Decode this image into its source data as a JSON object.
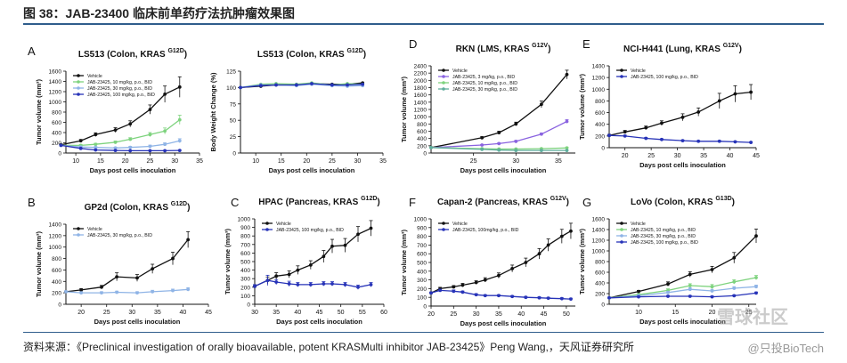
{
  "header": {
    "title": "图 38：JAB-23400 临床前单药疗法抗肿瘤效果图"
  },
  "footer": {
    "source": "资料来源：《Preclinical investigation of orally bioavailable, potent KRASMulti inhibitor JAB-23425》Peng Wang,，天风证券研究所",
    "watermark": "@只投BioTech",
    "watermark2": "雪球社区"
  },
  "colors": {
    "black": "#111111",
    "green": "#7ed37e",
    "lightblue": "#8fb4e6",
    "navy": "#2733b8",
    "purple": "#8a63e0",
    "teal": "#5fae9c",
    "rule": "#2f5d8c"
  },
  "chart_data": [
    {
      "panel": "A",
      "type": "line",
      "title": "LS513 (Colon, KRAS",
      "title_sup": "G12D",
      "ylabel": "Tumor volume (mm³)",
      "xlabel": "Days post cells inoculation",
      "xlim": [
        8,
        35
      ],
      "ylim": [
        0,
        1600
      ],
      "xticks": [
        10,
        15,
        20,
        25,
        30,
        35
      ],
      "yticks": [
        0,
        200,
        400,
        600,
        800,
        1000,
        1200,
        1400,
        1600
      ],
      "series": [
        {
          "name": "Vehicle",
          "color": "black",
          "x": [
            7,
            11,
            14,
            18,
            21,
            25,
            28,
            31
          ],
          "y": [
            160,
            240,
            360,
            450,
            570,
            850,
            1150,
            1290
          ],
          "err": [
            15,
            25,
            35,
            45,
            60,
            90,
            160,
            200
          ]
        },
        {
          "name": "JAB-23425, 10 mg/kg, p.o., BID",
          "color": "green",
          "x": [
            7,
            11,
            14,
            18,
            21,
            25,
            28,
            31
          ],
          "y": [
            150,
            150,
            170,
            210,
            270,
            360,
            430,
            650
          ],
          "err": [
            10,
            15,
            20,
            25,
            30,
            40,
            60,
            90
          ]
        },
        {
          "name": "JAB-23425, 30 mg/kg, p.o., BID",
          "color": "lightblue",
          "x": [
            7,
            11,
            14,
            18,
            21,
            25,
            28,
            31
          ],
          "y": [
            150,
            120,
            110,
            100,
            110,
            130,
            170,
            240
          ],
          "err": [
            10,
            15,
            15,
            15,
            20,
            25,
            30,
            40
          ]
        },
        {
          "name": "JAB-23425, 100 mg/kg, p.o., BID",
          "color": "navy",
          "x": [
            7,
            11,
            14,
            18,
            21,
            25,
            28,
            31
          ],
          "y": [
            150,
            90,
            60,
            50,
            45,
            45,
            45,
            50
          ],
          "err": [
            10,
            10,
            8,
            8,
            8,
            8,
            8,
            8
          ]
        }
      ]
    },
    {
      "panel": "A2",
      "type": "line",
      "title": "LS513 (Colon, KRAS",
      "title_sup": "G12D",
      "ylabel": "Body Weight Change (%)",
      "xlabel": "Days post cells inoculation",
      "xlim": [
        7,
        35
      ],
      "ylim": [
        0,
        125
      ],
      "xticks": [
        10,
        15,
        20,
        25,
        30,
        35
      ],
      "yticks": [
        0,
        25,
        50,
        75,
        100,
        125
      ],
      "series": [
        {
          "name": "",
          "color": "black",
          "x": [
            7,
            11,
            14,
            18,
            21,
            25,
            28,
            31
          ],
          "y": [
            100,
            102,
            104,
            104,
            106,
            105,
            105,
            107
          ]
        },
        {
          "name": "",
          "color": "green",
          "x": [
            7,
            11,
            14,
            18,
            21,
            25,
            28,
            31
          ],
          "y": [
            100,
            105,
            106,
            105,
            107,
            104,
            106,
            105
          ]
        },
        {
          "name": "",
          "color": "lightblue",
          "x": [
            7,
            11,
            14,
            18,
            21,
            25,
            28,
            31
          ],
          "y": [
            100,
            104,
            104,
            103,
            105,
            103,
            102,
            103
          ]
        },
        {
          "name": "",
          "color": "navy",
          "x": [
            7,
            11,
            14,
            18,
            21,
            25,
            28,
            31
          ],
          "y": [
            100,
            103,
            104,
            104,
            106,
            104,
            104,
            105
          ]
        }
      ]
    },
    {
      "panel": "D",
      "type": "line",
      "title": "RKN (LMS, KRAS",
      "title_sup": "G12V",
      "ylabel": "Tumor volume (mm³)",
      "xlabel": "Days post cells inoculation",
      "xlim": [
        20,
        37
      ],
      "ylim": [
        0,
        2400
      ],
      "xticks": [
        25,
        30,
        35
      ],
      "yticks": [
        0,
        200,
        400,
        600,
        800,
        1000,
        1200,
        1400,
        1600,
        1800,
        2000,
        2200,
        2400
      ],
      "series": [
        {
          "name": "Vehicle",
          "color": "black",
          "x": [
            20,
            26,
            28,
            30,
            33,
            36
          ],
          "y": [
            150,
            420,
            560,
            800,
            1340,
            2160
          ],
          "err": [
            15,
            30,
            40,
            50,
            90,
            120
          ]
        },
        {
          "name": "JAB-23425, 3 mg/kg, p.o., BID",
          "color": "purple",
          "x": [
            20,
            26,
            28,
            30,
            33,
            36
          ],
          "y": [
            150,
            220,
            260,
            320,
            520,
            870
          ],
          "err": [
            10,
            15,
            20,
            25,
            30,
            50
          ]
        },
        {
          "name": "JAB-23425, 10 mg/kg, p.o., BID",
          "color": "green",
          "x": [
            20,
            26,
            28,
            30,
            33,
            36
          ],
          "y": [
            150,
            120,
            110,
            110,
            120,
            140
          ],
          "err": [
            10,
            10,
            10,
            10,
            10,
            15
          ]
        },
        {
          "name": "JAB-23425, 30 mg/kg, p.o., BID",
          "color": "teal",
          "x": [
            20,
            26,
            28,
            30,
            33,
            36
          ],
          "y": [
            150,
            100,
            80,
            70,
            70,
            70
          ],
          "err": [
            10,
            10,
            8,
            8,
            8,
            8
          ]
        }
      ]
    },
    {
      "panel": "E",
      "type": "line",
      "title": "NCI-H441 (Lung, KRAS",
      "title_sup": "G12V",
      "ylabel": "Tumor volume (mm³)",
      "xlabel": "Days post cells inoculation",
      "xlim": [
        17,
        45
      ],
      "ylim": [
        0,
        1400
      ],
      "xticks": [
        20,
        25,
        30,
        35,
        40,
        45
      ],
      "yticks": [
        0,
        200,
        400,
        600,
        800,
        1000,
        1200,
        1400
      ],
      "series": [
        {
          "name": "Vehicle",
          "color": "black",
          "x": [
            17,
            20,
            24,
            27,
            31,
            34,
            38,
            41,
            44
          ],
          "y": [
            210,
            270,
            340,
            420,
            520,
            610,
            800,
            920,
            950
          ],
          "err": [
            20,
            25,
            30,
            40,
            60,
            70,
            130,
            140,
            130
          ]
        },
        {
          "name": "JAB-23425, 100 mg/kg, p.o., BID",
          "color": "navy",
          "x": [
            17,
            20,
            24,
            27,
            31,
            34,
            38,
            41,
            44
          ],
          "y": [
            210,
            200,
            160,
            140,
            120,
            110,
            110,
            100,
            90
          ],
          "err": [
            15,
            15,
            15,
            12,
            12,
            10,
            10,
            10,
            10
          ]
        }
      ]
    },
    {
      "panel": "B",
      "type": "line",
      "title": "GP2d (Colon, KRAS",
      "title_sup": "G12D",
      "ylabel": "Tumor volume (mm³)",
      "xlabel": "Days post cells inoculation",
      "xlim": [
        17,
        45
      ],
      "ylim": [
        0,
        1400
      ],
      "xticks": [
        20,
        25,
        30,
        35,
        40,
        45
      ],
      "yticks": [
        0,
        200,
        400,
        600,
        800,
        1000,
        1200,
        1400
      ],
      "series": [
        {
          "name": "Vehicle",
          "color": "black",
          "x": [
            17,
            20,
            24,
            27,
            31,
            34,
            38,
            41
          ],
          "y": [
            220,
            250,
            300,
            480,
            460,
            620,
            800,
            1130
          ],
          "err": [
            15,
            25,
            30,
            70,
            60,
            80,
            110,
            140
          ]
        },
        {
          "name": "JAB-23425, 30 mg/kg, p.o., BID",
          "color": "lightblue",
          "x": [
            17,
            20,
            24,
            27,
            31,
            34,
            38,
            41
          ],
          "y": [
            220,
            200,
            200,
            210,
            200,
            220,
            240,
            260
          ],
          "err": [
            15,
            20,
            20,
            20,
            20,
            25,
            25,
            30
          ]
        }
      ]
    },
    {
      "panel": "C",
      "type": "line",
      "title": "HPAC (Pancreas, KRAS",
      "title_sup": "G12D",
      "ylabel": "Tumor volume (mm³)",
      "xlabel": "Days post cells inoculation",
      "xlim": [
        30,
        60
      ],
      "ylim": [
        0,
        1000
      ],
      "xticks": [
        30,
        35,
        40,
        45,
        50,
        55,
        60
      ],
      "yticks": [
        0,
        100,
        200,
        300,
        400,
        500,
        600,
        700,
        800,
        900,
        1000
      ],
      "series": [
        {
          "name": "Vehicle",
          "color": "black",
          "x": [
            30,
            33,
            35,
            38,
            40,
            43,
            46,
            48,
            51,
            54,
            57
          ],
          "y": [
            210,
            280,
            330,
            350,
            400,
            460,
            560,
            680,
            690,
            820,
            890
          ],
          "err": [
            20,
            40,
            40,
            40,
            50,
            50,
            70,
            80,
            80,
            90,
            90
          ]
        },
        {
          "name": "JAB-23425, 100 mg/kg, p.o., BID",
          "color": "navy",
          "x": [
            30,
            33,
            35,
            38,
            40,
            43,
            46,
            48,
            51,
            54,
            57
          ],
          "y": [
            210,
            280,
            260,
            240,
            230,
            230,
            240,
            240,
            230,
            200,
            230
          ],
          "err": [
            20,
            60,
            30,
            30,
            25,
            25,
            25,
            25,
            25,
            25,
            25
          ]
        }
      ]
    },
    {
      "panel": "F",
      "type": "line",
      "title": "Capan-2 (Pancreas, KRAS",
      "title_sup": "G12V",
      "ylabel": "Tumor volume (mm³)",
      "xlabel": "Days post cells inoculation",
      "xlim": [
        20,
        52
      ],
      "ylim": [
        0,
        1000
      ],
      "xticks": [
        20,
        25,
        30,
        35,
        40,
        45,
        50
      ],
      "yticks": [
        0,
        100,
        200,
        300,
        400,
        500,
        600,
        700,
        800,
        900,
        1000
      ],
      "series": [
        {
          "name": "Vehicle",
          "color": "black",
          "x": [
            20,
            22,
            25,
            27,
            30,
            32,
            35,
            38,
            41,
            44,
            46,
            49,
            51
          ],
          "y": [
            150,
            200,
            220,
            240,
            270,
            300,
            350,
            430,
            500,
            600,
            700,
            800,
            860
          ],
          "err": [
            10,
            15,
            15,
            20,
            20,
            25,
            30,
            40,
            50,
            60,
            70,
            80,
            90
          ]
        },
        {
          "name": "JAB-23425, 100mg/kg, p.o., BID",
          "color": "navy",
          "x": [
            20,
            22,
            25,
            27,
            30,
            32,
            35,
            38,
            41,
            44,
            46,
            49,
            51
          ],
          "y": [
            150,
            180,
            170,
            160,
            130,
            120,
            120,
            110,
            100,
            95,
            90,
            85,
            80
          ],
          "err": [
            10,
            15,
            15,
            12,
            12,
            10,
            10,
            10,
            10,
            10,
            10,
            10,
            10
          ]
        }
      ]
    },
    {
      "panel": "G",
      "type": "line",
      "title": "LoVo (Colon, KRAS",
      "title_sup": "G13D",
      "ylabel": "Tumor volume (mm³)",
      "xlabel": "Days post cells inoculation",
      "xlim": [
        6,
        26
      ],
      "ylim": [
        0,
        1600
      ],
      "xticks": [
        10,
        15,
        20,
        25
      ],
      "yticks": [
        0,
        200,
        400,
        600,
        800,
        1000,
        1200,
        1400,
        1600
      ],
      "series": [
        {
          "name": "Vehicle",
          "color": "black",
          "x": [
            6,
            10,
            14,
            17,
            20,
            23,
            26
          ],
          "y": [
            120,
            240,
            380,
            560,
            650,
            870,
            1280
          ],
          "err": [
            10,
            20,
            40,
            50,
            60,
            100,
            130
          ]
        },
        {
          "name": "JAB-23425, 10 mg/kg, p.o., BID",
          "color": "green",
          "x": [
            6,
            10,
            14,
            17,
            20,
            23,
            26
          ],
          "y": [
            120,
            180,
            260,
            350,
            330,
            420,
            500
          ],
          "err": [
            10,
            20,
            30,
            35,
            40,
            40,
            40
          ]
        },
        {
          "name": "JAB-23425, 30 mg/kg, p.o., BID",
          "color": "lightblue",
          "x": [
            6,
            10,
            14,
            17,
            20,
            23,
            26
          ],
          "y": [
            120,
            160,
            220,
            280,
            250,
            300,
            330
          ],
          "err": [
            10,
            15,
            25,
            30,
            30,
            30,
            30
          ]
        },
        {
          "name": "JAB-23425, 100 mg/kg, p.o., BID",
          "color": "navy",
          "x": [
            6,
            10,
            14,
            17,
            20,
            23,
            26
          ],
          "y": [
            120,
            140,
            150,
            150,
            140,
            160,
            210
          ],
          "err": [
            10,
            12,
            15,
            15,
            15,
            15,
            20
          ]
        }
      ]
    }
  ],
  "panel_letters": [
    "A",
    "D",
    "E",
    "B",
    "C",
    "F",
    "G"
  ]
}
